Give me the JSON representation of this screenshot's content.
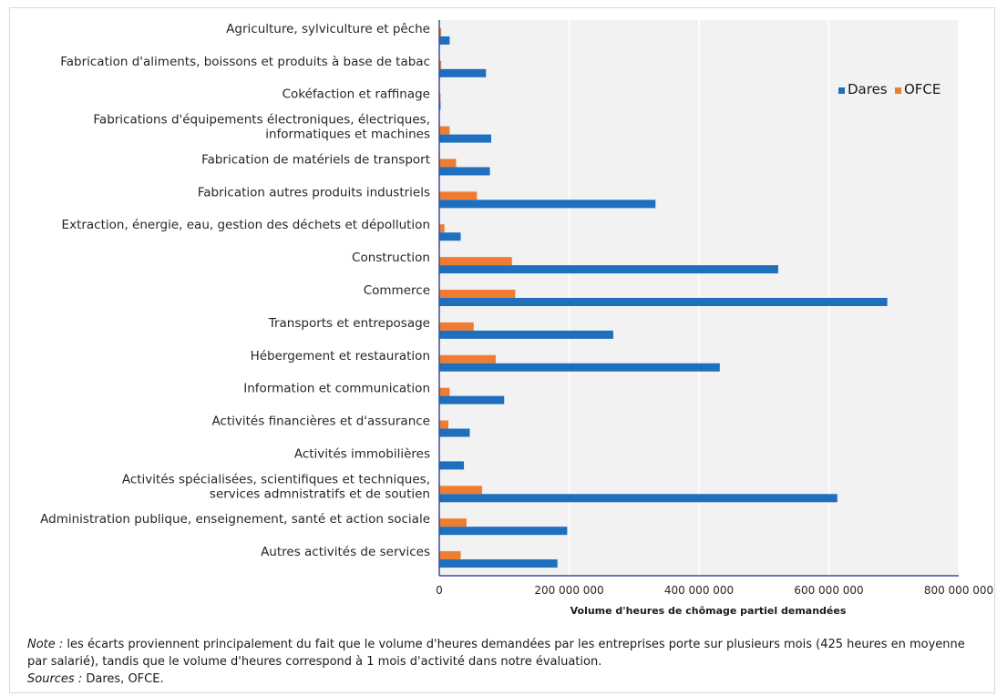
{
  "chart_data": {
    "type": "bar",
    "orientation": "horizontal",
    "categories": [
      "Agriculture, sylviculture et pêche",
      "Fabrication d'aliments, boissons et produits à base de tabac",
      "Cokéfaction et raffinage",
      "Fabrications d'équipements électroniques, électriques, informatiques et machines",
      "Fabrication de matériels de transport",
      "Fabrication autres produits industriels",
      "Extraction, énergie, eau, gestion des déchets et dépollution",
      "Construction",
      "Commerce",
      "Transports et entreposage",
      "Hébergement et restauration",
      "Information et communication",
      "Activités financières et d'assurance",
      "Activités immobilières",
      "Activités spécialisées, scientifiques et techniques, services admnistratifs et de soutien",
      "Administration publique, enseignement, santé et action sociale",
      "Autres activités de services"
    ],
    "category_lines": [
      [
        "Agriculture, sylviculture et pêche"
      ],
      [
        "Fabrication d'aliments, boissons et produits à base de tabac"
      ],
      [
        "Cokéfaction et raffinage"
      ],
      [
        "Fabrications d'équipements électroniques, électriques,",
        "informatiques et machines"
      ],
      [
        "Fabrication de matériels de transport"
      ],
      [
        "Fabrication autres produits industriels"
      ],
      [
        "Extraction, énergie, eau, gestion des déchets et dépollution"
      ],
      [
        "Construction"
      ],
      [
        "Commerce"
      ],
      [
        "Transports et entreposage"
      ],
      [
        "Hébergement et restauration"
      ],
      [
        "Information et communication"
      ],
      [
        "Activités financières et d'assurance"
      ],
      [
        "Activités immobilières"
      ],
      [
        "Activités spécialisées, scientifiques et techniques,",
        "services admnistratifs et de soutien"
      ],
      [
        "Administration publique, enseignement, santé et action sociale"
      ],
      [
        "Autres activités de services"
      ]
    ],
    "series": [
      {
        "name": "Dares",
        "color": "#1f6fbf",
        "values": [
          16000000,
          72000000,
          2000000,
          80000000,
          78000000,
          333000000,
          33000000,
          522000000,
          690000000,
          268000000,
          432000000,
          100000000,
          47000000,
          38000000,
          613000000,
          197000000,
          182000000
        ]
      },
      {
        "name": "OFCE",
        "color": "#ef7d31",
        "values": [
          3000000,
          3000000,
          2000000,
          16000000,
          26000000,
          58000000,
          8000000,
          112000000,
          117000000,
          53000000,
          87000000,
          16000000,
          14000000,
          0,
          66000000,
          42000000,
          33000000
        ]
      }
    ],
    "xlabel": "Volume d'heures de chômage partiel demandées",
    "ylabel": "",
    "xlim": [
      0,
      800000000
    ],
    "x_ticks": [
      0,
      200000000,
      400000000,
      600000000,
      800000000
    ],
    "x_tick_labels": [
      "0",
      "200 000 000",
      "400 000 000",
      "600 000 000",
      "800 000 000"
    ],
    "grid": true,
    "plot_background": "#f2f2f2",
    "legend_position": "top-right"
  },
  "notes": {
    "note_label": "Note :",
    "note_text": " les écarts proviennent principalement du fait que le volume d'heures demandées par les entreprises porte sur plusieurs mois (425 heures en moyenne par salarié), tandis que le volume d'heures correspond à 1 mois d'activité dans notre évaluation.",
    "sources_label": "Sources :",
    "sources_text": " Dares, OFCE."
  }
}
